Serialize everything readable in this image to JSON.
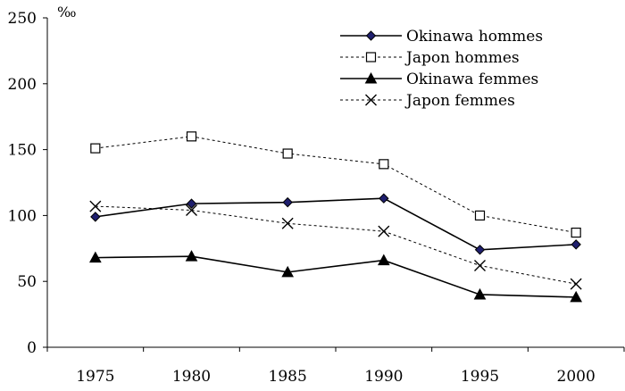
{
  "chart_data": {
    "type": "line",
    "ylabel": "‰",
    "xlabel": "",
    "title": "",
    "categories": [
      "1975",
      "1980",
      "1985",
      "1990",
      "1995",
      "2000"
    ],
    "yticks": [
      "0",
      "50",
      "100",
      "150",
      "200",
      "250"
    ],
    "ylim": [
      0,
      250
    ],
    "grid": false,
    "legend": "top-right",
    "series": [
      {
        "name": "Okinawa hommes",
        "values": [
          99,
          109,
          110,
          113,
          74,
          78
        ],
        "marker": "diamond",
        "line": "solid",
        "color": "#000000",
        "marker_fill": "#1f1f6e"
      },
      {
        "name": "Japon hommes",
        "values": [
          151,
          160,
          147,
          139,
          100,
          87
        ],
        "marker": "open-square",
        "line": "dotted",
        "color": "#000000",
        "marker_fill": "#ffffff"
      },
      {
        "name": "Okinawa femmes",
        "values": [
          68,
          69,
          57,
          66,
          40,
          38
        ],
        "marker": "triangle",
        "line": "solid",
        "color": "#000000",
        "marker_fill": "#000000"
      },
      {
        "name": "Japon femmes",
        "values": [
          107,
          104,
          94,
          88,
          62,
          48
        ],
        "marker": "cross",
        "line": "dotted",
        "color": "#000000",
        "marker_fill": "none"
      }
    ]
  }
}
